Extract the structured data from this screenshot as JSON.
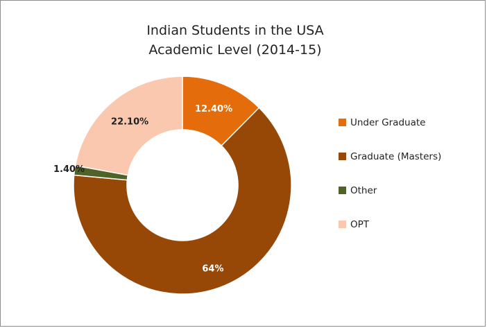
{
  "chart_data": {
    "type": "pie",
    "variant": "donut",
    "title": [
      "Indian Students in the USA",
      "Academic Level (2014-15)"
    ],
    "categories": [
      "Under Graduate",
      "Graduate (Masters)",
      "Other",
      "OPT"
    ],
    "values": [
      12.4,
      64,
      1.4,
      22.1
    ],
    "data_labels": [
      "12.40%",
      "64%",
      "1.40%",
      "22.10%"
    ],
    "colors": [
      "#e46c0a",
      "#974806",
      "#4f6228",
      "#fac8ae"
    ],
    "label_colors": [
      "#ffffff",
      "#ffffff",
      "#222222",
      "#222222"
    ],
    "label_placement": [
      "inside",
      "inside",
      "outside-left",
      "inside"
    ],
    "start_angle_deg": 0,
    "direction": "clockwise",
    "legend_position": "right"
  }
}
